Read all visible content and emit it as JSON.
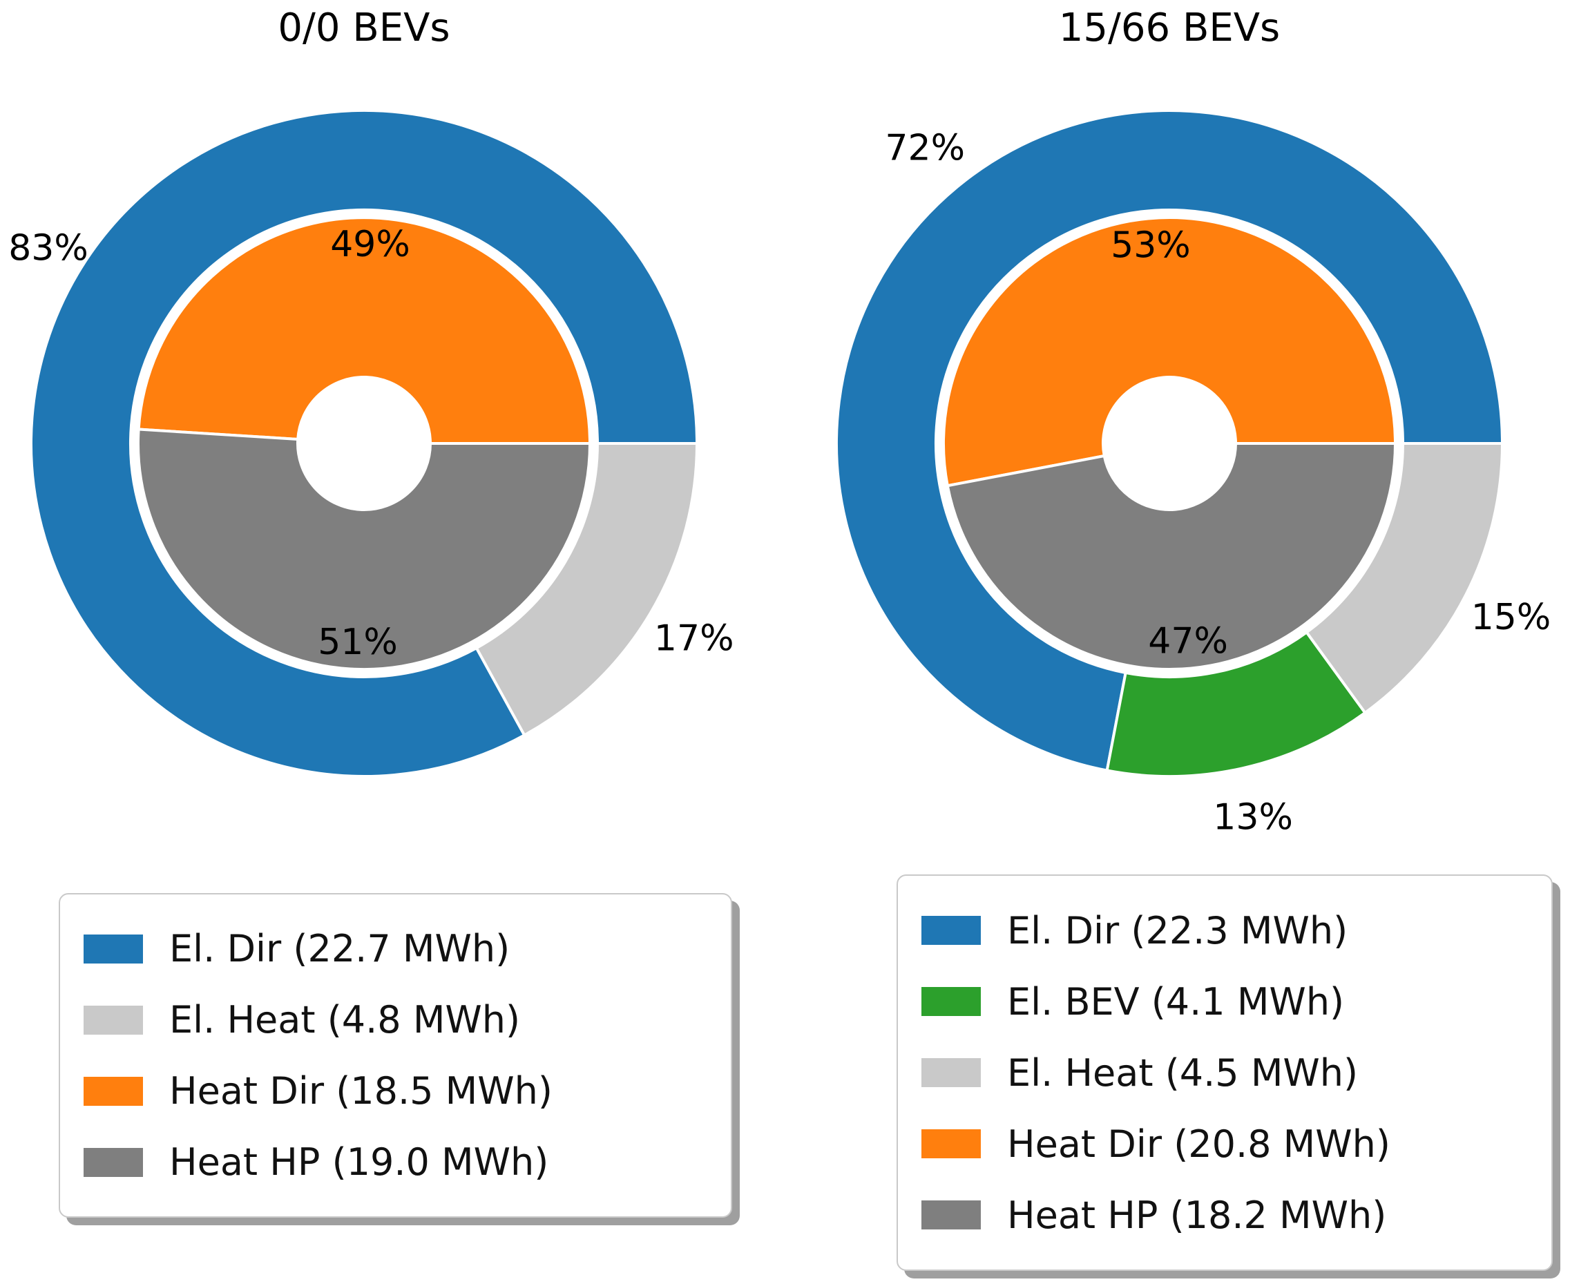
{
  "layout": {
    "background": "#ffffff"
  },
  "chart_data": [
    {
      "type": "pie",
      "variant": "nested_donut",
      "title": "0/0 BEVs",
      "start_angle_deg": 0,
      "direction": "counterclockwise",
      "outer_ring": {
        "name": "electricity-use",
        "slices": [
          {
            "label": "El. Dir",
            "percent": 83,
            "mwh": 22.7,
            "color": "#1f77b4"
          },
          {
            "label": "El. Heat",
            "percent": 17,
            "mwh": 4.8,
            "color": "#c9c9c9"
          }
        ]
      },
      "inner_ring": {
        "name": "heat-source",
        "slices": [
          {
            "label": "Heat Dir",
            "percent": 49,
            "mwh": 18.5,
            "color": "#ff7f0e"
          },
          {
            "label": "Heat HP",
            "percent": 51,
            "mwh": 19.0,
            "color": "#7f7f7f"
          }
        ]
      },
      "legend": [
        {
          "label": "El. Dir (22.7 MWh)",
          "color": "#1f77b4"
        },
        {
          "label": "El. Heat (4.8 MWh)",
          "color": "#c9c9c9"
        },
        {
          "label": "Heat Dir (18.5 MWh)",
          "color": "#ff7f0e"
        },
        {
          "label": "Heat HP (19.0 MWh)",
          "color": "#7f7f7f"
        }
      ]
    },
    {
      "type": "pie",
      "variant": "nested_donut",
      "title": "15/66 BEVs",
      "start_angle_deg": 0,
      "direction": "counterclockwise",
      "outer_ring": {
        "name": "electricity-use",
        "slices": [
          {
            "label": "El. Dir",
            "percent": 72,
            "mwh": 22.3,
            "color": "#1f77b4"
          },
          {
            "label": "El. BEV",
            "percent": 13,
            "mwh": 4.1,
            "color": "#2ca02c"
          },
          {
            "label": "El. Heat",
            "percent": 15,
            "mwh": 4.5,
            "color": "#c9c9c9"
          }
        ]
      },
      "inner_ring": {
        "name": "heat-source",
        "slices": [
          {
            "label": "Heat Dir",
            "percent": 53,
            "mwh": 20.8,
            "color": "#ff7f0e"
          },
          {
            "label": "Heat HP",
            "percent": 47,
            "mwh": 18.2,
            "color": "#7f7f7f"
          }
        ]
      },
      "legend": [
        {
          "label": "El. Dir (22.3 MWh)",
          "color": "#1f77b4"
        },
        {
          "label": "El. BEV (4.1 MWh)",
          "color": "#2ca02c"
        },
        {
          "label": "El. Heat (4.5 MWh)",
          "color": "#c9c9c9"
        },
        {
          "label": "Heat Dir (20.8 MWh)",
          "color": "#ff7f0e"
        },
        {
          "label": "Heat HP (18.2 MWh)",
          "color": "#7f7f7f"
        }
      ]
    }
  ]
}
